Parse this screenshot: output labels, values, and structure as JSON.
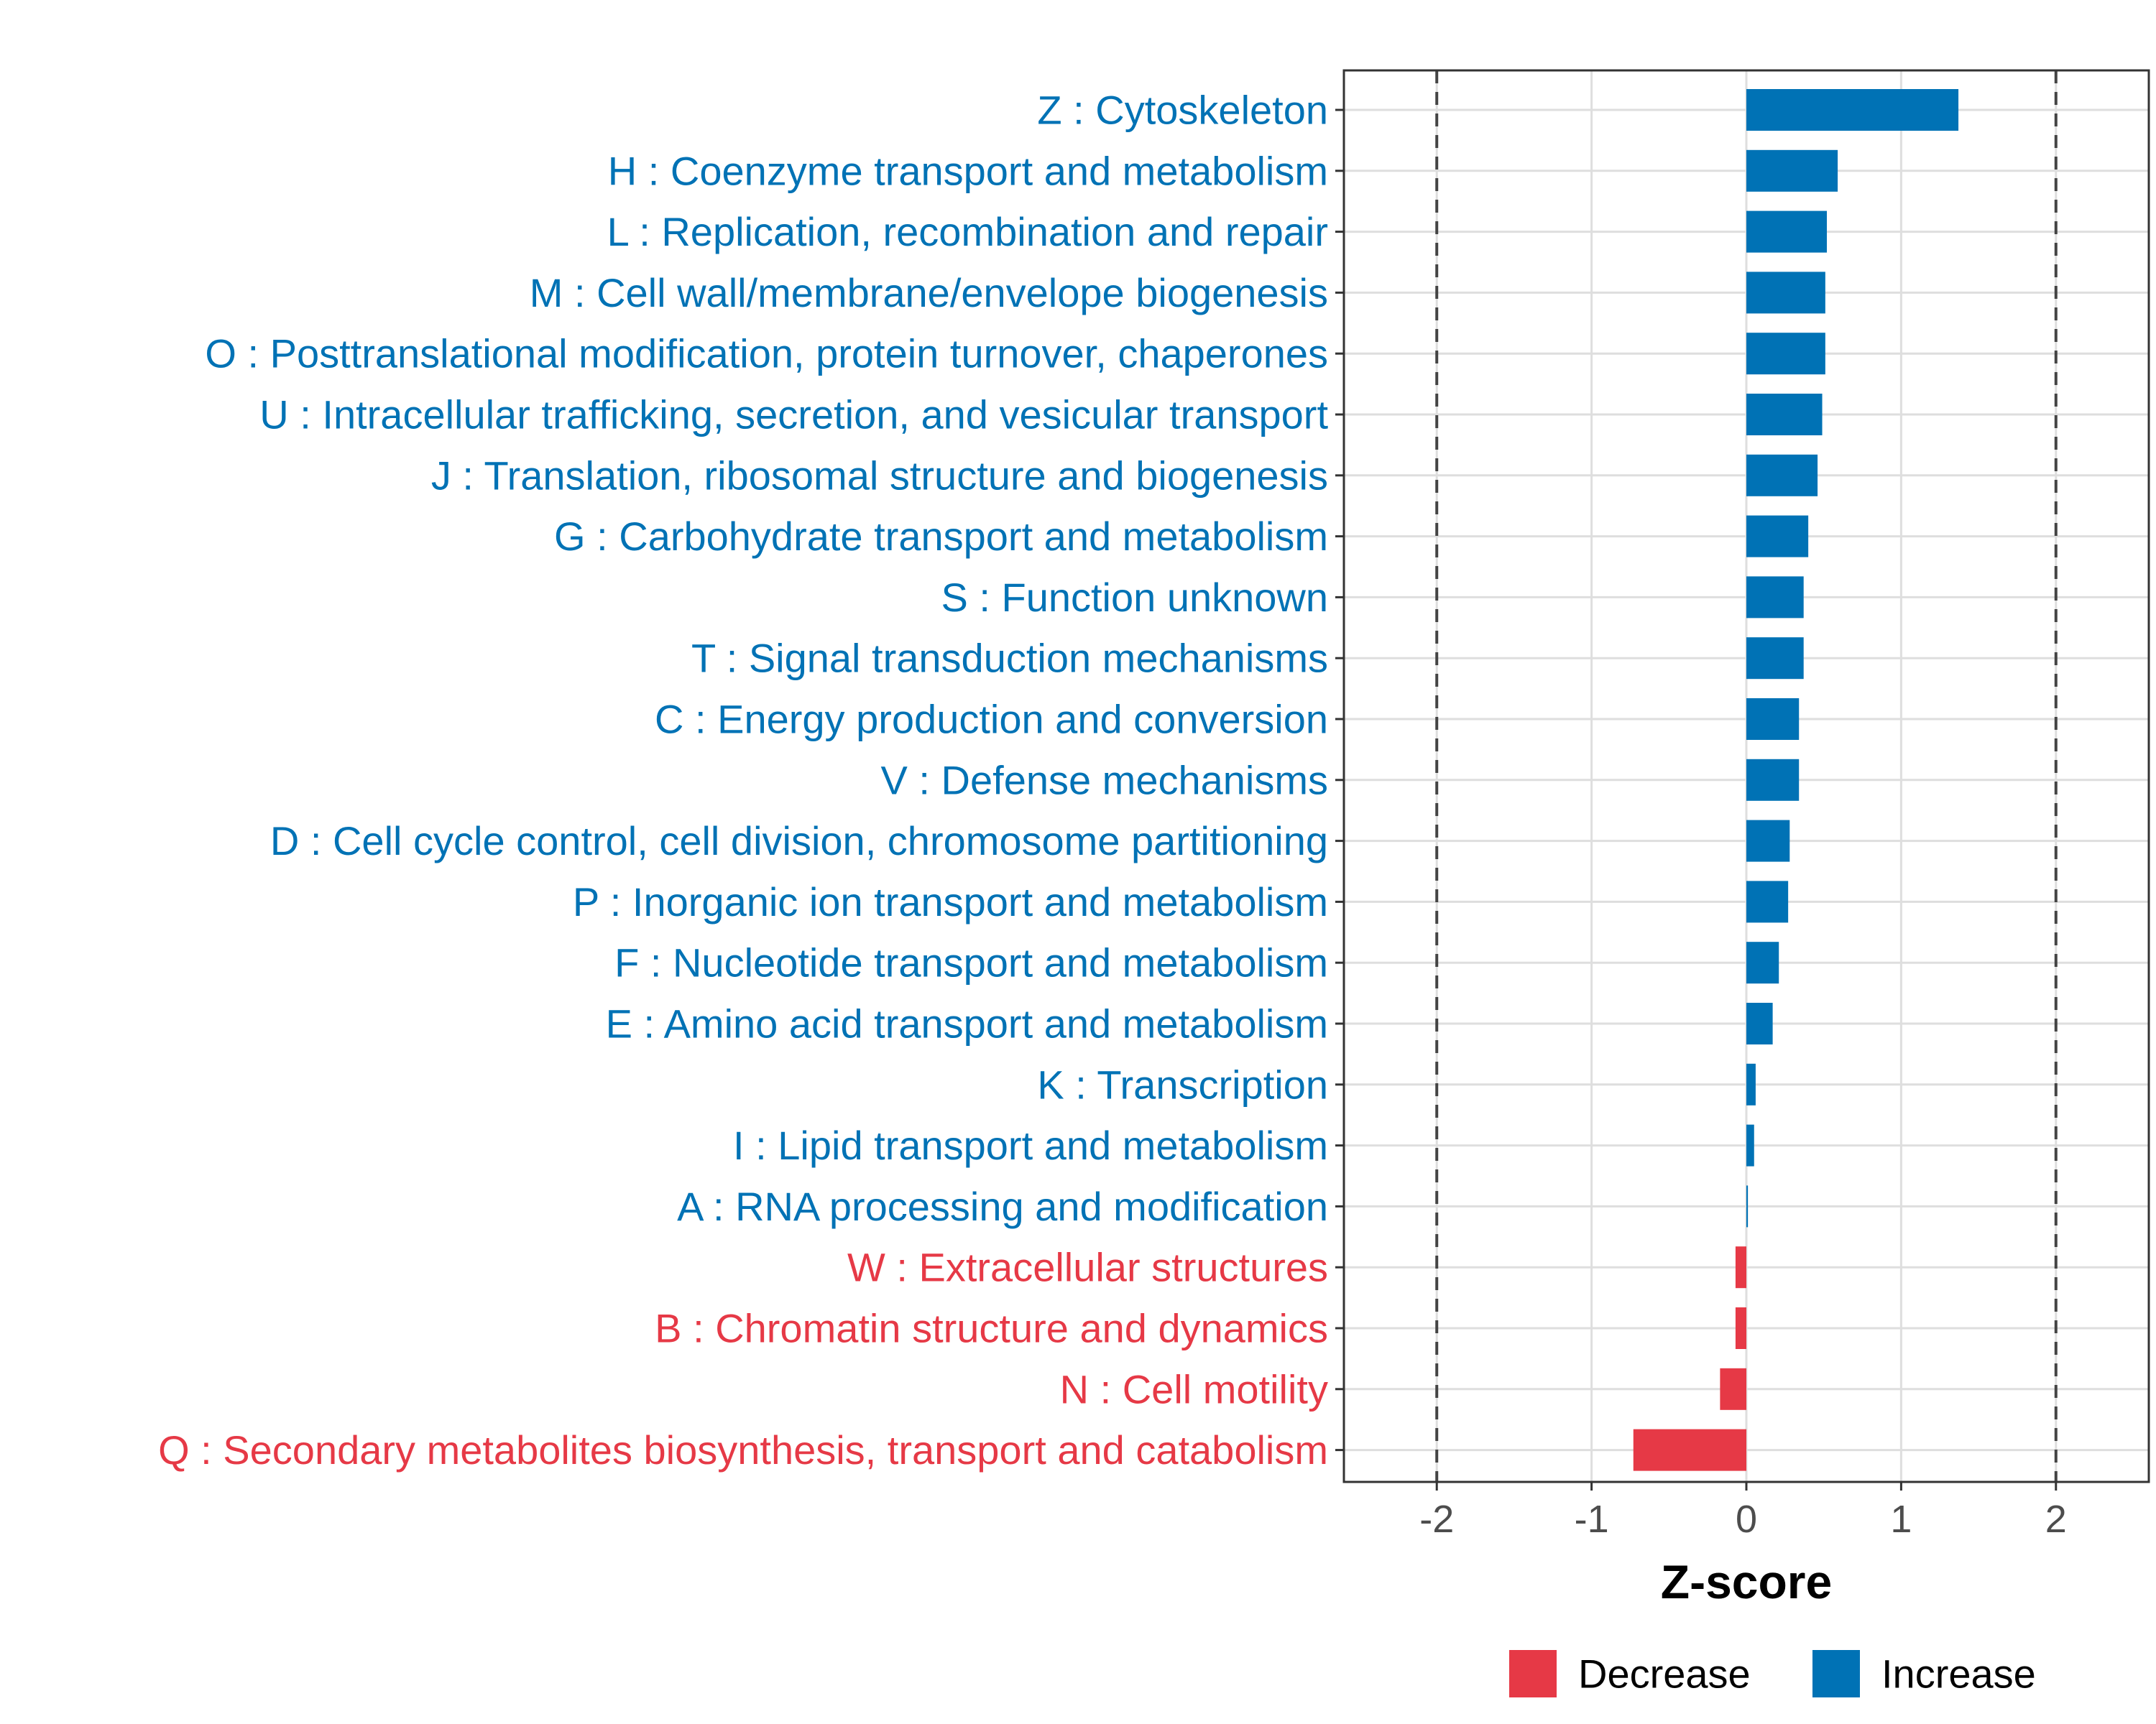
{
  "chart_data": {
    "type": "bar",
    "orientation": "horizontal",
    "xlabel": "Z-score",
    "xlim": [
      -2.6,
      2.6
    ],
    "xticks": [
      -2,
      -1,
      0,
      1,
      2
    ],
    "xtick_labels": [
      "-2",
      "-1",
      "0",
      "1",
      "2"
    ],
    "reference_lines": [
      -2,
      2
    ],
    "grid": true,
    "colors": {
      "Increase": "#0072b5",
      "Decrease": "#e63946"
    },
    "categories": [
      "Z : Cytoskeleton",
      "H : Coenzyme transport and metabolism",
      "L : Replication, recombination and repair",
      "M : Cell wall/membrane/envelope biogenesis",
      "O : Posttranslational modification, protein turnover, chaperones",
      "U : Intracellular trafficking, secretion, and vesicular transport",
      "J : Translation, ribosomal structure and biogenesis",
      "G : Carbohydrate transport and metabolism",
      "S : Function unknown",
      "T : Signal transduction mechanisms",
      "C : Energy production and conversion",
      "V : Defense mechanisms",
      "D : Cell cycle control, cell division, chromosome partitioning",
      "P : Inorganic ion transport and metabolism",
      "F : Nucleotide transport and metabolism",
      "E : Amino acid transport and metabolism",
      "K : Transcription",
      "I : Lipid transport and metabolism",
      "A : RNA processing and modification",
      "W : Extracellular structures",
      "B : Chromatin structure and dynamics",
      "N : Cell motility",
      "Q : Secondary metabolites biosynthesis, transport and catabolism"
    ],
    "values": [
      1.37,
      0.59,
      0.52,
      0.51,
      0.51,
      0.49,
      0.46,
      0.4,
      0.37,
      0.37,
      0.34,
      0.34,
      0.28,
      0.27,
      0.21,
      0.17,
      0.06,
      0.05,
      0.01,
      -0.07,
      -0.07,
      -0.17,
      -0.73
    ],
    "groups": [
      "Increase",
      "Increase",
      "Increase",
      "Increase",
      "Increase",
      "Increase",
      "Increase",
      "Increase",
      "Increase",
      "Increase",
      "Increase",
      "Increase",
      "Increase",
      "Increase",
      "Increase",
      "Increase",
      "Increase",
      "Increase",
      "Increase",
      "Decrease",
      "Decrease",
      "Decrease",
      "Decrease"
    ],
    "legend": {
      "position": "bottom",
      "entries": [
        {
          "label": "Decrease",
          "color": "#e63946"
        },
        {
          "label": "Increase",
          "color": "#0072b5"
        }
      ]
    }
  }
}
